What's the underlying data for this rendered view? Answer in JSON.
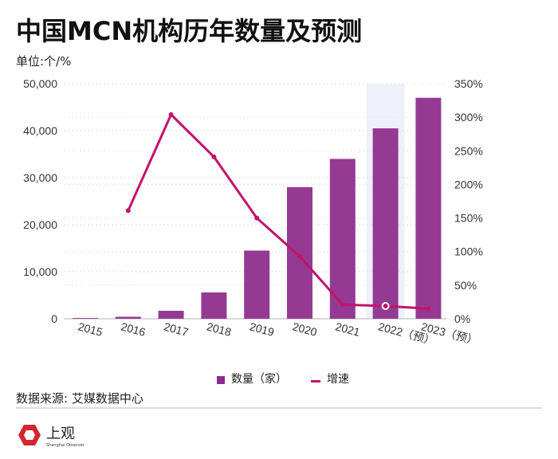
{
  "title": "中国MCN机构历年数量及预测",
  "unit": "单位:个/%",
  "source": "数据来源: 艾媒数据中心",
  "logo": {
    "text": "上观",
    "sub": "Shanghai Observer"
  },
  "colors": {
    "bar": "#953a93",
    "line": "#c2136b",
    "highlight": "#eef1f9"
  },
  "chart_data": {
    "type": "bar+line",
    "categories": [
      "2015",
      "2016",
      "2017",
      "2018",
      "2019",
      "2020",
      "2021",
      "2022（预）",
      "2023（预）"
    ],
    "series": [
      {
        "name": "数量（家）",
        "type": "bar",
        "axis": "left",
        "values": [
          160,
          420,
          1700,
          5600,
          14500,
          28000,
          34000,
          40500,
          47000
        ]
      },
      {
        "name": "增速",
        "type": "line",
        "axis": "right",
        "values": [
          null,
          161,
          304,
          241,
          150,
          93,
          21,
          19,
          15
        ]
      }
    ],
    "left_axis": {
      "ticks": [
        "0",
        "10,000",
        "20,000",
        "30,000",
        "40,000",
        "50,000"
      ],
      "ylim": [
        0,
        50000
      ]
    },
    "right_axis": {
      "ticks": [
        "0%",
        "50%",
        "100%",
        "150%",
        "200%",
        "250%",
        "300%",
        "350%"
      ],
      "ylim": [
        0,
        350
      ]
    },
    "highlighted_category": "2022（预）",
    "legend": [
      "数量（家）",
      "增速"
    ],
    "legend_position": "bottom"
  }
}
